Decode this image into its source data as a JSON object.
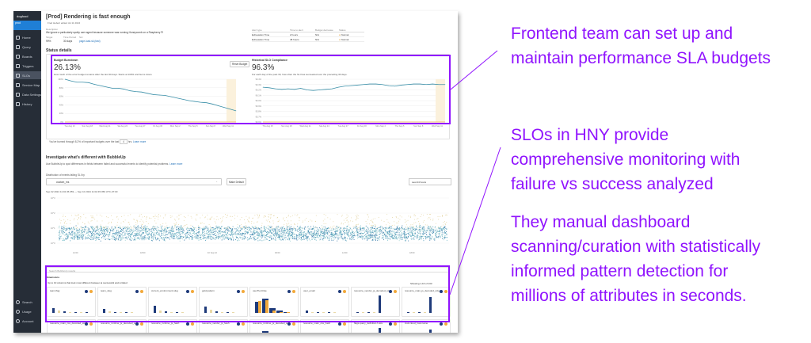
{
  "sidebar": {
    "team": "dogfood",
    "environment": "prod",
    "items": [
      {
        "label": "Home",
        "icon": "home-icon"
      },
      {
        "label": "Query",
        "icon": "query-icon"
      },
      {
        "label": "Boards",
        "icon": "boards-icon"
      },
      {
        "label": "Triggers",
        "icon": "triggers-icon"
      },
      {
        "label": "SLOs",
        "icon": "slo-icon",
        "active": true
      },
      {
        "label": "Service Map",
        "icon": "service-map-icon"
      },
      {
        "label": "Data Settings",
        "icon": "data-settings-icon"
      },
      {
        "label": "History",
        "icon": "history-icon"
      }
    ],
    "bottom": [
      {
        "label": "Search",
        "icon": "search-icon"
      },
      {
        "label": "Usage",
        "icon": "usage-icon"
      },
      {
        "label": "Account",
        "icon": "account-icon"
      }
    ]
  },
  "slo": {
    "title": "[Prod] Rendering is fast enough",
    "edited": "Fred Hebert edited Jul 11 2024",
    "description_label": "Description",
    "description": "We ignore a particularly spotty user agent because someone was running Honeycomb on a Raspberry Pi",
    "target_label": "Target",
    "target": "99%",
    "time_period_label": "Time Period",
    "time_period": "30 days",
    "sli_label": "SLI",
    "sli": "page-load-sli-(fast)"
  },
  "alerts": {
    "headers": [
      "Alert type",
      "Time to alert",
      "Budget decrease",
      "Status"
    ],
    "rows": [
      [
        "Exhaustion Time",
        "2 hours",
        "N/A",
        "Normal"
      ],
      [
        "Exhaustion Time",
        "48 hours",
        "N/A",
        "Normal"
      ]
    ]
  },
  "status_details": "Status details",
  "burndown": {
    "title": "Budget Burndown",
    "value": "26.13%",
    "desc": "How much of the error budget remains after the last 30 days. Starts at 100% and burns down.",
    "reset_button": "Reset Budget"
  },
  "compliance": {
    "title": "Historical SLO Compliance",
    "value": "96.3%",
    "desc": "For each day of the past 30, how often the SLI has succeeded over the preceding 30 days."
  },
  "burn_note": {
    "text_before": "You've burned through 8.2% of important budgets over the last",
    "hours": "4",
    "text_after": "hrs.",
    "link": "Learn more"
  },
  "bubbleup": {
    "title": "Investigate what's different with BubbleUp",
    "desc": "Use BubbleUp to spot differences in fields between failed and successful events to identify potential problems.",
    "link": "Learn more",
    "dist_label": "Distribution of events failing SLI by",
    "field": "custom_ms",
    "make_default": "Make Default",
    "time_range": "Last 24 hours",
    "time_span": "Sep 02 2024 11:02:45.059 — Sep 10 2024 11:02:45.059 UTC-07:00",
    "search_placeholder": "Search BubbleUp results",
    "dimensions": "Dimensions",
    "summary": "Up to 10 columns that look most different between ● successful and ● failed",
    "showing": "Showing 1-16 of 133",
    "x_ticks": [
      "12:00",
      "18:00",
      "Fri Sep 10",
      "06:00",
      "12:00",
      "18:00"
    ],
    "y_ticks": [
      "10^3",
      "10^2",
      "10^1",
      "10^0"
    ]
  },
  "fields": [
    "team.flag",
    "team_slug",
    "current_environment.slug",
    "gold.pattern",
    "userTier.Role",
    "user_email",
    "resource_vendor_js_decoded_size_kb",
    "resource_main_js_decoded_size_kb",
    "resource_main_css_decoded_size_kb",
    "resource_runtime_js_decoded_size_kb",
    "resource_runtime_js_hash",
    "resource_vendor_js_hash",
    "resource_runtime_js_decoded_size_kb",
    "resource_main_css_hash",
    "flags.query_definition.f.size",
    "instr.cloud_host.name"
  ],
  "notes": {
    "n1": [
      "Frontend team can set up and",
      "maintain performance SLA budgets"
    ],
    "n2": [
      "SLOs in HNY provide",
      "comprehensive monitoring with",
      "failure vs success analyzed"
    ],
    "n3": [
      "They manual dashboard",
      "scanning/curation with statistically",
      "informed pattern detection for",
      "millions of attributes in seconds."
    ]
  },
  "colors": {
    "accent": "#9013fe",
    "sidebar": "#262d37",
    "success": "#1e3a7a",
    "failed": "#f2a93b",
    "line": "#3a8fa8"
  },
  "chart_data": [
    {
      "type": "line",
      "title": "Budget Burndown",
      "ylim": [
        0,
        100
      ],
      "y_ticks": [
        "100%",
        "80%",
        "60%",
        "40%",
        "20%",
        "0%"
      ],
      "x_ticks": [
        "Tue Aug 13",
        "Sun Aug 18",
        "Wed Aug 21",
        "Sat Aug 24",
        "Tue Aug 27",
        "Fri Aug 30",
        "Mon Sep 2",
        "Thu Sep 5",
        "Sun Sep 8",
        "Wed Sep 11"
      ],
      "values": [
        100,
        96,
        93,
        93,
        92,
        88,
        85,
        82,
        79,
        79,
        77,
        73,
        71,
        70,
        67,
        64,
        63,
        62,
        59,
        56,
        53,
        50,
        48,
        46,
        45,
        42,
        38,
        34,
        30,
        26.13
      ]
    },
    {
      "type": "line",
      "title": "Historical SLO Compliance",
      "ylim": [
        95.6,
        96.4
      ],
      "y_ticks": [
        "96.4%",
        "96.3%",
        "96.2%",
        "96.1%",
        "96.0%",
        "95.9%",
        "95.8%",
        "95.7%",
        "95.6%"
      ],
      "x_ticks": [
        "Thu Aug 15",
        "Sun Aug 18",
        "Wed Aug 21",
        "Sat Aug 24",
        "Tue Aug 27",
        "Fri Aug 30",
        "Mon Sep 2",
        "Thu Sep 5",
        "Sun Sep 8",
        "Wed Sep 11"
      ],
      "values": [
        96.25,
        96.24,
        96.22,
        96.21,
        96.22,
        96.21,
        96.23,
        96.2,
        96.19,
        96.2,
        96.21,
        96.22,
        96.25,
        96.27,
        96.28,
        96.29,
        96.3,
        96.31,
        96.31,
        96.3,
        96.28,
        96.27,
        96.29,
        96.3,
        96.31,
        96.31,
        96.3,
        96.31,
        96.3,
        96.3
      ]
    }
  ]
}
